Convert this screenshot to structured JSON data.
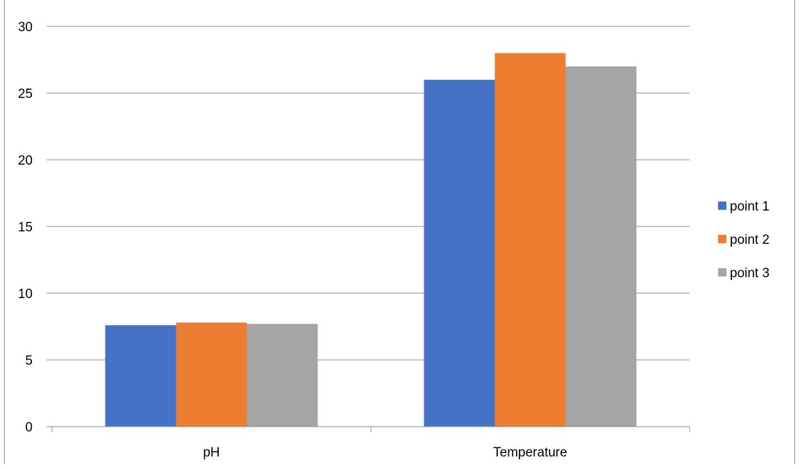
{
  "chart_data": {
    "type": "bar",
    "categories": [
      "pH",
      "Temperature"
    ],
    "series": [
      {
        "name": "point 1",
        "values": [
          7.6,
          26
        ],
        "color": "#4472C4"
      },
      {
        "name": "point 2",
        "values": [
          7.8,
          28
        ],
        "color": "#ED7D31"
      },
      {
        "name": "point 3",
        "values": [
          7.7,
          27
        ],
        "color": "#A5A5A5"
      }
    ],
    "title": "",
    "xlabel": "",
    "ylabel": "",
    "ylim": [
      0,
      30
    ],
    "yticks": [
      0,
      5,
      10,
      15,
      20,
      25,
      30
    ],
    "grid": true,
    "legend_position": "right"
  }
}
